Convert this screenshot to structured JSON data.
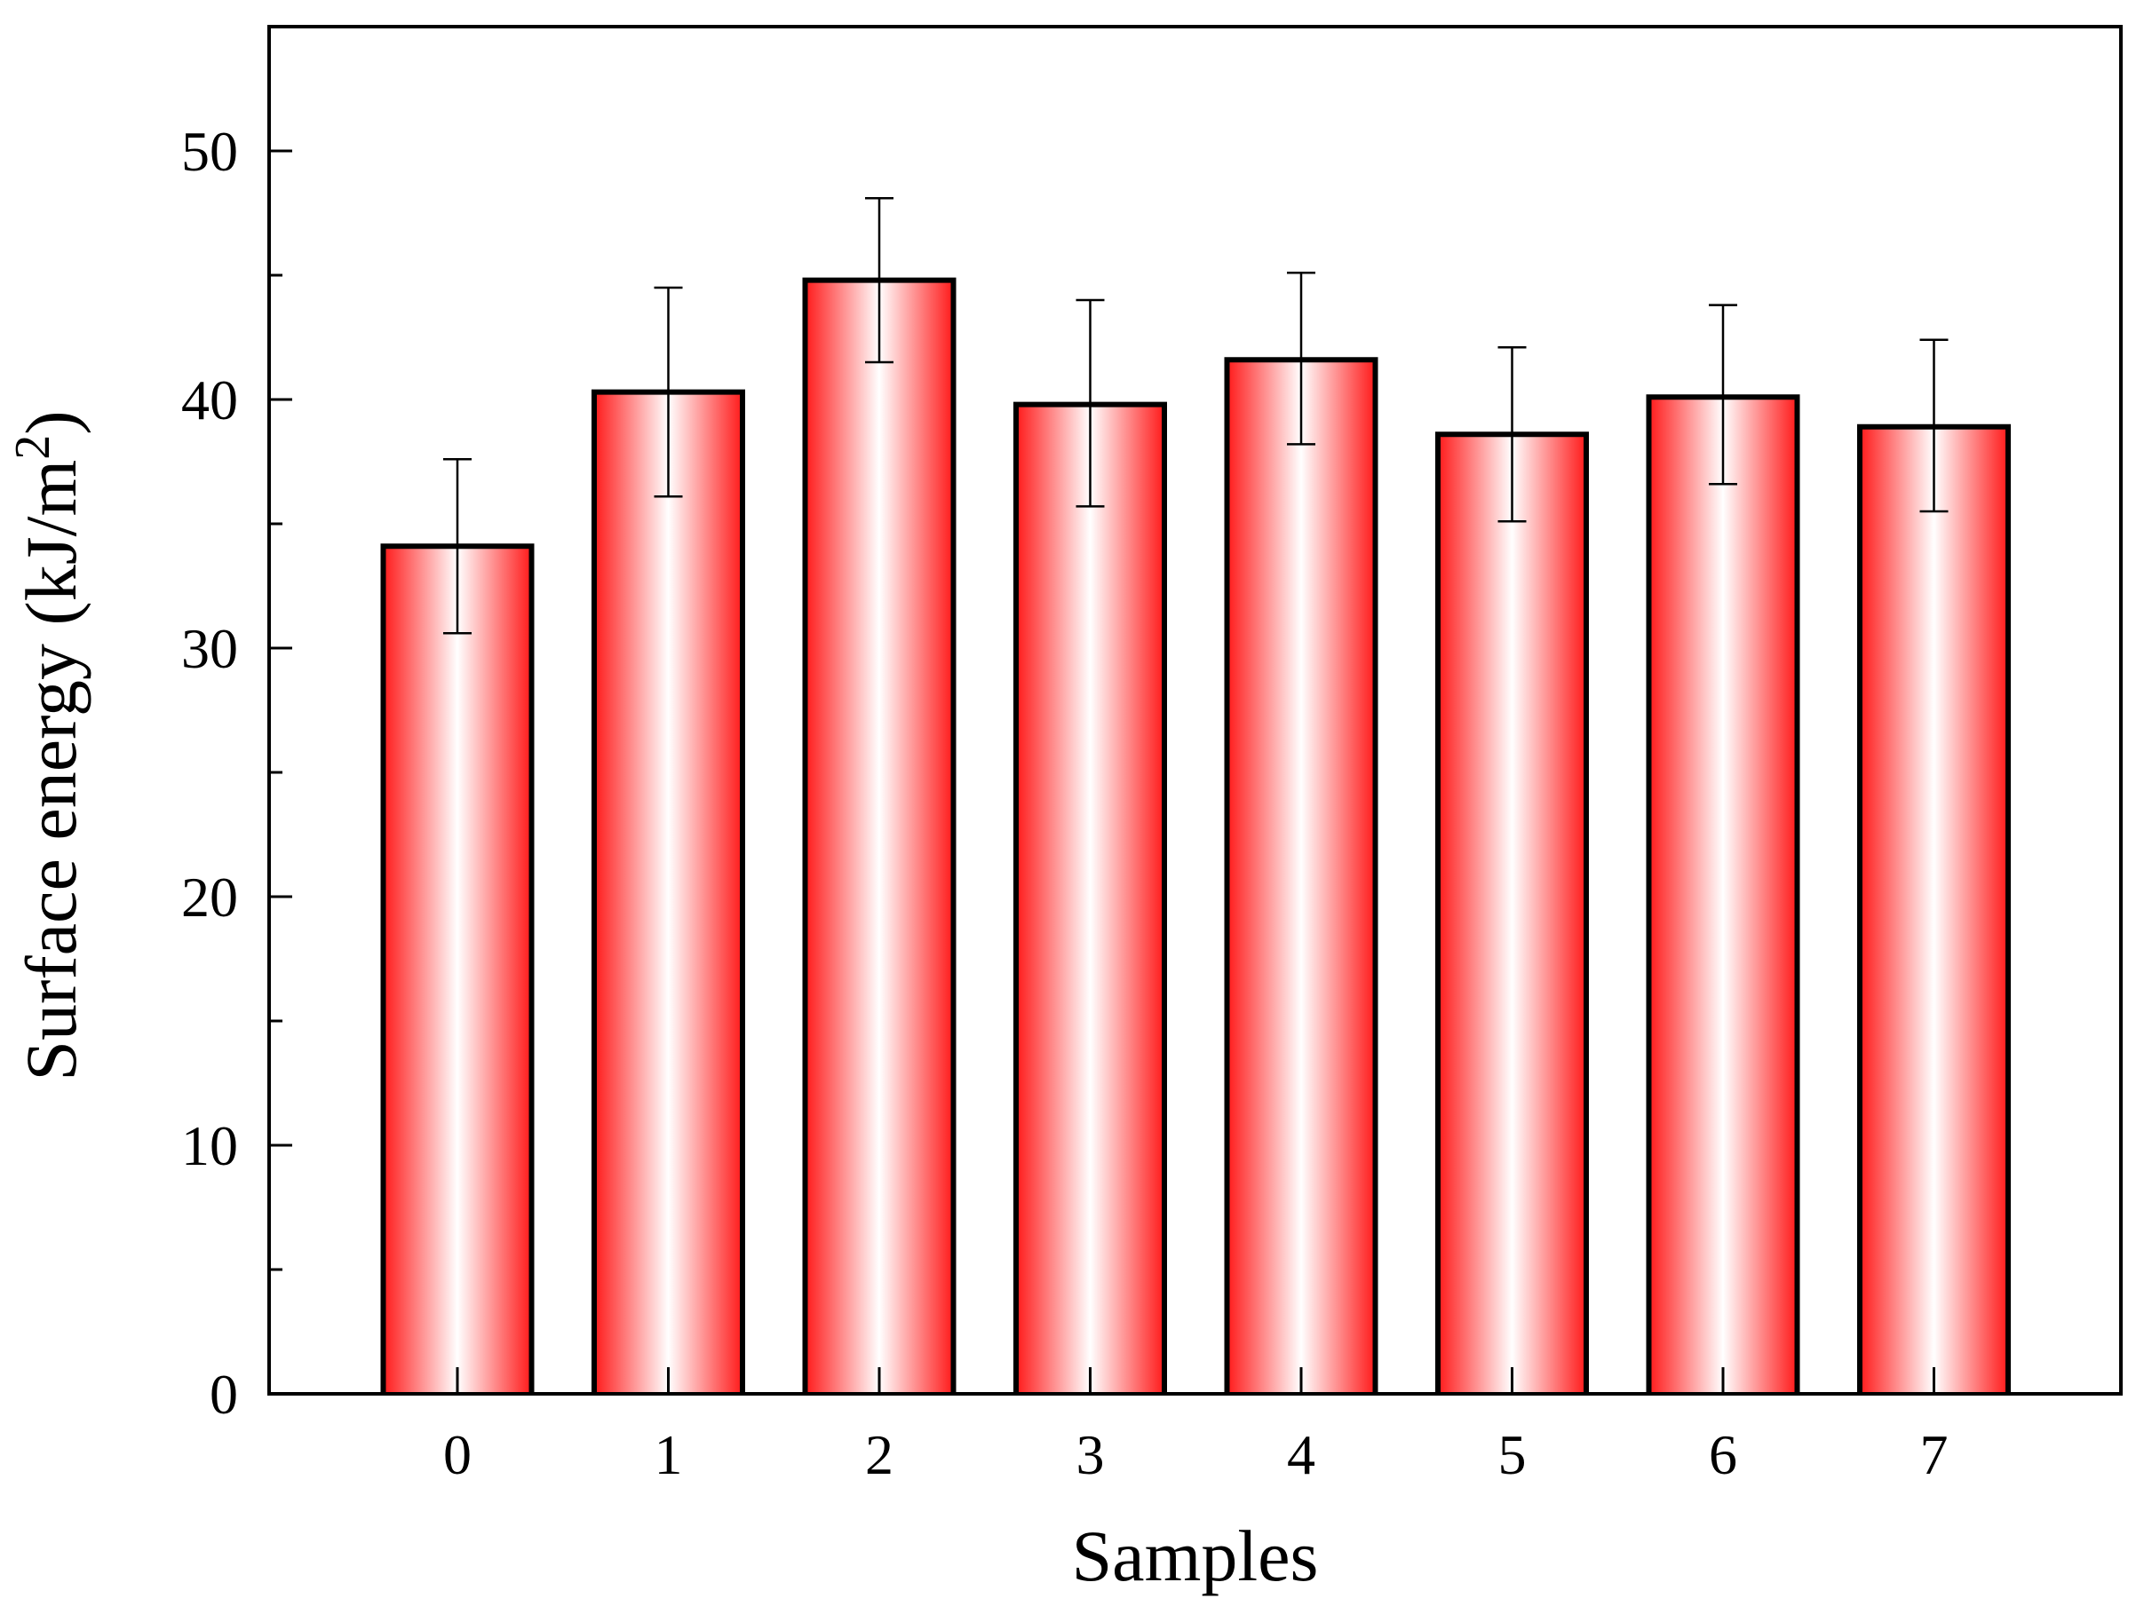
{
  "chart_data": {
    "type": "bar",
    "xlabel": "Samples",
    "ylabel": "Surface energy (kJ/m",
    "ylabel_superscript": "2",
    "ylabel_suffix": ")",
    "categories": [
      "0",
      "1",
      "2",
      "3",
      "4",
      "5",
      "6",
      "7"
    ],
    "values": [
      34.1,
      40.3,
      44.8,
      39.8,
      41.6,
      38.6,
      40.1,
      38.9
    ],
    "error_upper": [
      37.6,
      44.5,
      48.1,
      44.0,
      45.1,
      42.1,
      43.8,
      42.4
    ],
    "error_lower": [
      30.6,
      36.1,
      41.5,
      35.7,
      38.2,
      35.1,
      36.6,
      35.5
    ],
    "ylim": [
      0,
      55
    ],
    "y_major_ticks": [
      0,
      10,
      20,
      30,
      40,
      50
    ],
    "y_minor_step": 5,
    "grid": false,
    "legend": "none",
    "bar_edge_color": "#000000",
    "bar_gradient_edge_color": "#ff1a1a",
    "bar_gradient_center_color": "#ffffff"
  }
}
